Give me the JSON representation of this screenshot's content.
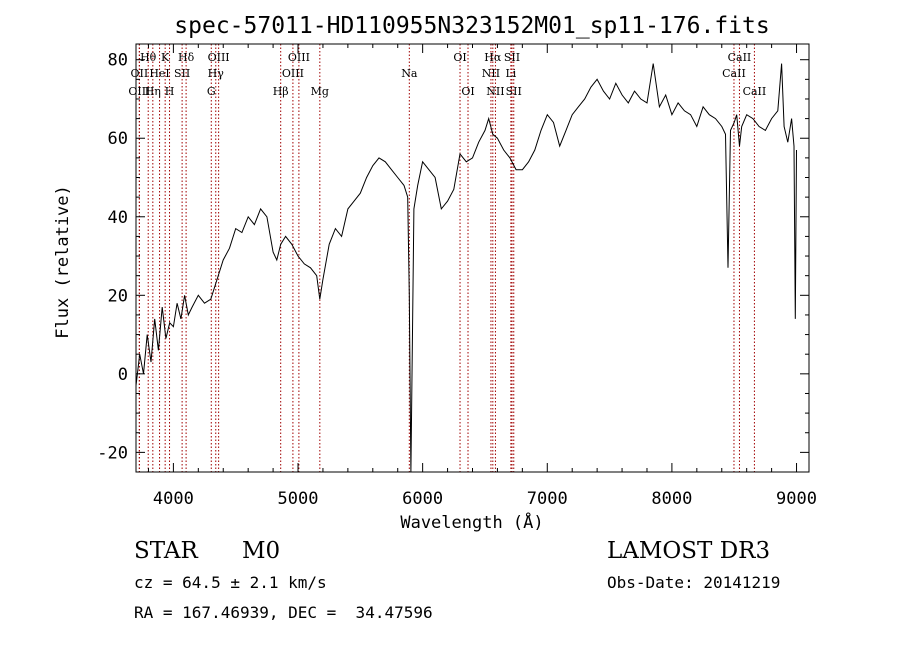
{
  "chart_data": {
    "type": "line",
    "title": "spec-57011-HD110955N323152M01_sp11-176.fits",
    "xlabel": "Wavelength (Å)",
    "ylabel": "Flux (relative)",
    "xlim": [
      3700,
      9100
    ],
    "ylim": [
      -25,
      84
    ],
    "xticks": [
      4000,
      5000,
      6000,
      7000,
      8000,
      9000
    ],
    "yticks": [
      -20,
      0,
      20,
      40,
      60,
      80
    ],
    "grid": false,
    "series": [
      {
        "name": "flux",
        "x": [
          3700,
          3730,
          3760,
          3790,
          3820,
          3850,
          3880,
          3910,
          3940,
          3970,
          4000,
          4030,
          4060,
          4090,
          4120,
          4150,
          4200,
          4250,
          4300,
          4350,
          4400,
          4450,
          4500,
          4550,
          4600,
          4650,
          4700,
          4750,
          4800,
          4830,
          4861,
          4900,
          4950,
          5000,
          5050,
          5100,
          5150,
          5175,
          5200,
          5250,
          5300,
          5350,
          5400,
          5450,
          5500,
          5550,
          5600,
          5650,
          5700,
          5750,
          5800,
          5850,
          5880,
          5893,
          5906,
          5930,
          5960,
          6000,
          6050,
          6100,
          6150,
          6200,
          6250,
          6300,
          6350,
          6400,
          6450,
          6500,
          6530,
          6563,
          6600,
          6650,
          6700,
          6750,
          6800,
          6850,
          6900,
          6950,
          7000,
          7050,
          7100,
          7150,
          7200,
          7250,
          7300,
          7350,
          7400,
          7450,
          7500,
          7550,
          7600,
          7650,
          7700,
          7750,
          7800,
          7850,
          7900,
          7950,
          8000,
          8050,
          8100,
          8150,
          8200,
          8250,
          8300,
          8350,
          8400,
          8430,
          8450,
          8470,
          8500,
          8520,
          8542,
          8560,
          8600,
          8650,
          8700,
          8750,
          8800,
          8850,
          8880,
          8900,
          8930,
          8960,
          8980,
          8990,
          9000
        ],
        "values": [
          -3,
          5,
          0,
          10,
          3,
          14,
          6,
          17,
          9,
          13,
          12,
          18,
          14,
          20,
          15,
          17,
          20,
          18,
          19,
          24,
          29,
          32,
          37,
          36,
          40,
          38,
          42,
          40,
          31,
          29,
          33,
          35,
          33,
          30,
          28,
          27,
          25,
          19,
          24,
          33,
          37,
          35,
          42,
          44,
          46,
          50,
          53,
          55,
          54,
          52,
          50,
          48,
          45,
          20,
          -25,
          42,
          48,
          54,
          52,
          50,
          42,
          44,
          47,
          56,
          54,
          55,
          59,
          62,
          65,
          61,
          60,
          57,
          55,
          52,
          52,
          54,
          57,
          62,
          66,
          64,
          58,
          62,
          66,
          68,
          70,
          73,
          75,
          72,
          70,
          74,
          71,
          69,
          72,
          70,
          69,
          79,
          68,
          71,
          66,
          69,
          67,
          66,
          63,
          68,
          66,
          65,
          63,
          61,
          27,
          62,
          64,
          66,
          58,
          63,
          66,
          65,
          63,
          62,
          65,
          67,
          79,
          63,
          59,
          65,
          58,
          14,
          57
        ]
      }
    ],
    "lines": [
      {
        "name": "Hθ",
        "x": 3798,
        "row": 1
      },
      {
        "name": "OII",
        "x": 3727,
        "row": 2
      },
      {
        "name": "OIII",
        "x": 3727,
        "row": 3
      },
      {
        "name": "K",
        "x": 3934,
        "row": 1
      },
      {
        "name": "HeI",
        "x": 3889,
        "row": 2
      },
      {
        "name": "Hη",
        "x": 3835,
        "row": 3
      },
      {
        "name": "H",
        "x": 3969,
        "row": 3
      },
      {
        "name": "Hδ",
        "x": 4102,
        "row": 1
      },
      {
        "name": "SII",
        "x": 4070,
        "row": 2
      },
      {
        "name": "OIII",
        "x": 4363,
        "row": 1
      },
      {
        "name": "Hγ",
        "x": 4340,
        "row": 2
      },
      {
        "name": "G",
        "x": 4304,
        "row": 3
      },
      {
        "name": "Hβ",
        "x": 4861,
        "row": 3
      },
      {
        "name": "OIII",
        "x": 5007,
        "row": 1
      },
      {
        "name": "OIII",
        "x": 4959,
        "row": 2
      },
      {
        "name": "Mg",
        "x": 5175,
        "row": 3
      },
      {
        "name": "Na",
        "x": 5893,
        "row": 2
      },
      {
        "name": "OI",
        "x": 6300,
        "row": 1
      },
      {
        "name": "OI",
        "x": 6364,
        "row": 3
      },
      {
        "name": "Hα",
        "x": 6563,
        "row": 1
      },
      {
        "name": "NII",
        "x": 6548,
        "row": 2
      },
      {
        "name": "NII",
        "x": 6584,
        "row": 3
      },
      {
        "name": "SII",
        "x": 6717,
        "row": 1
      },
      {
        "name": "Li",
        "x": 6708,
        "row": 2
      },
      {
        "name": "SII",
        "x": 6731,
        "row": 3
      },
      {
        "name": "CaII",
        "x": 8542,
        "row": 1
      },
      {
        "name": "CaII",
        "x": 8498,
        "row": 2
      },
      {
        "name": "CaII",
        "x": 8662,
        "row": 3
      }
    ]
  },
  "info": {
    "class_label": "STAR",
    "subclass": "M0",
    "survey": "LAMOST DR3",
    "cz": "cz = 64.5 ± 2.1 km/s",
    "obs_date": "Obs-Date: 20141219",
    "coords": "RA = 167.46939, DEC =  34.47596"
  },
  "colors": {
    "spectrum": "#000000",
    "line_marker": "#a00000",
    "axis": "#000000"
  }
}
